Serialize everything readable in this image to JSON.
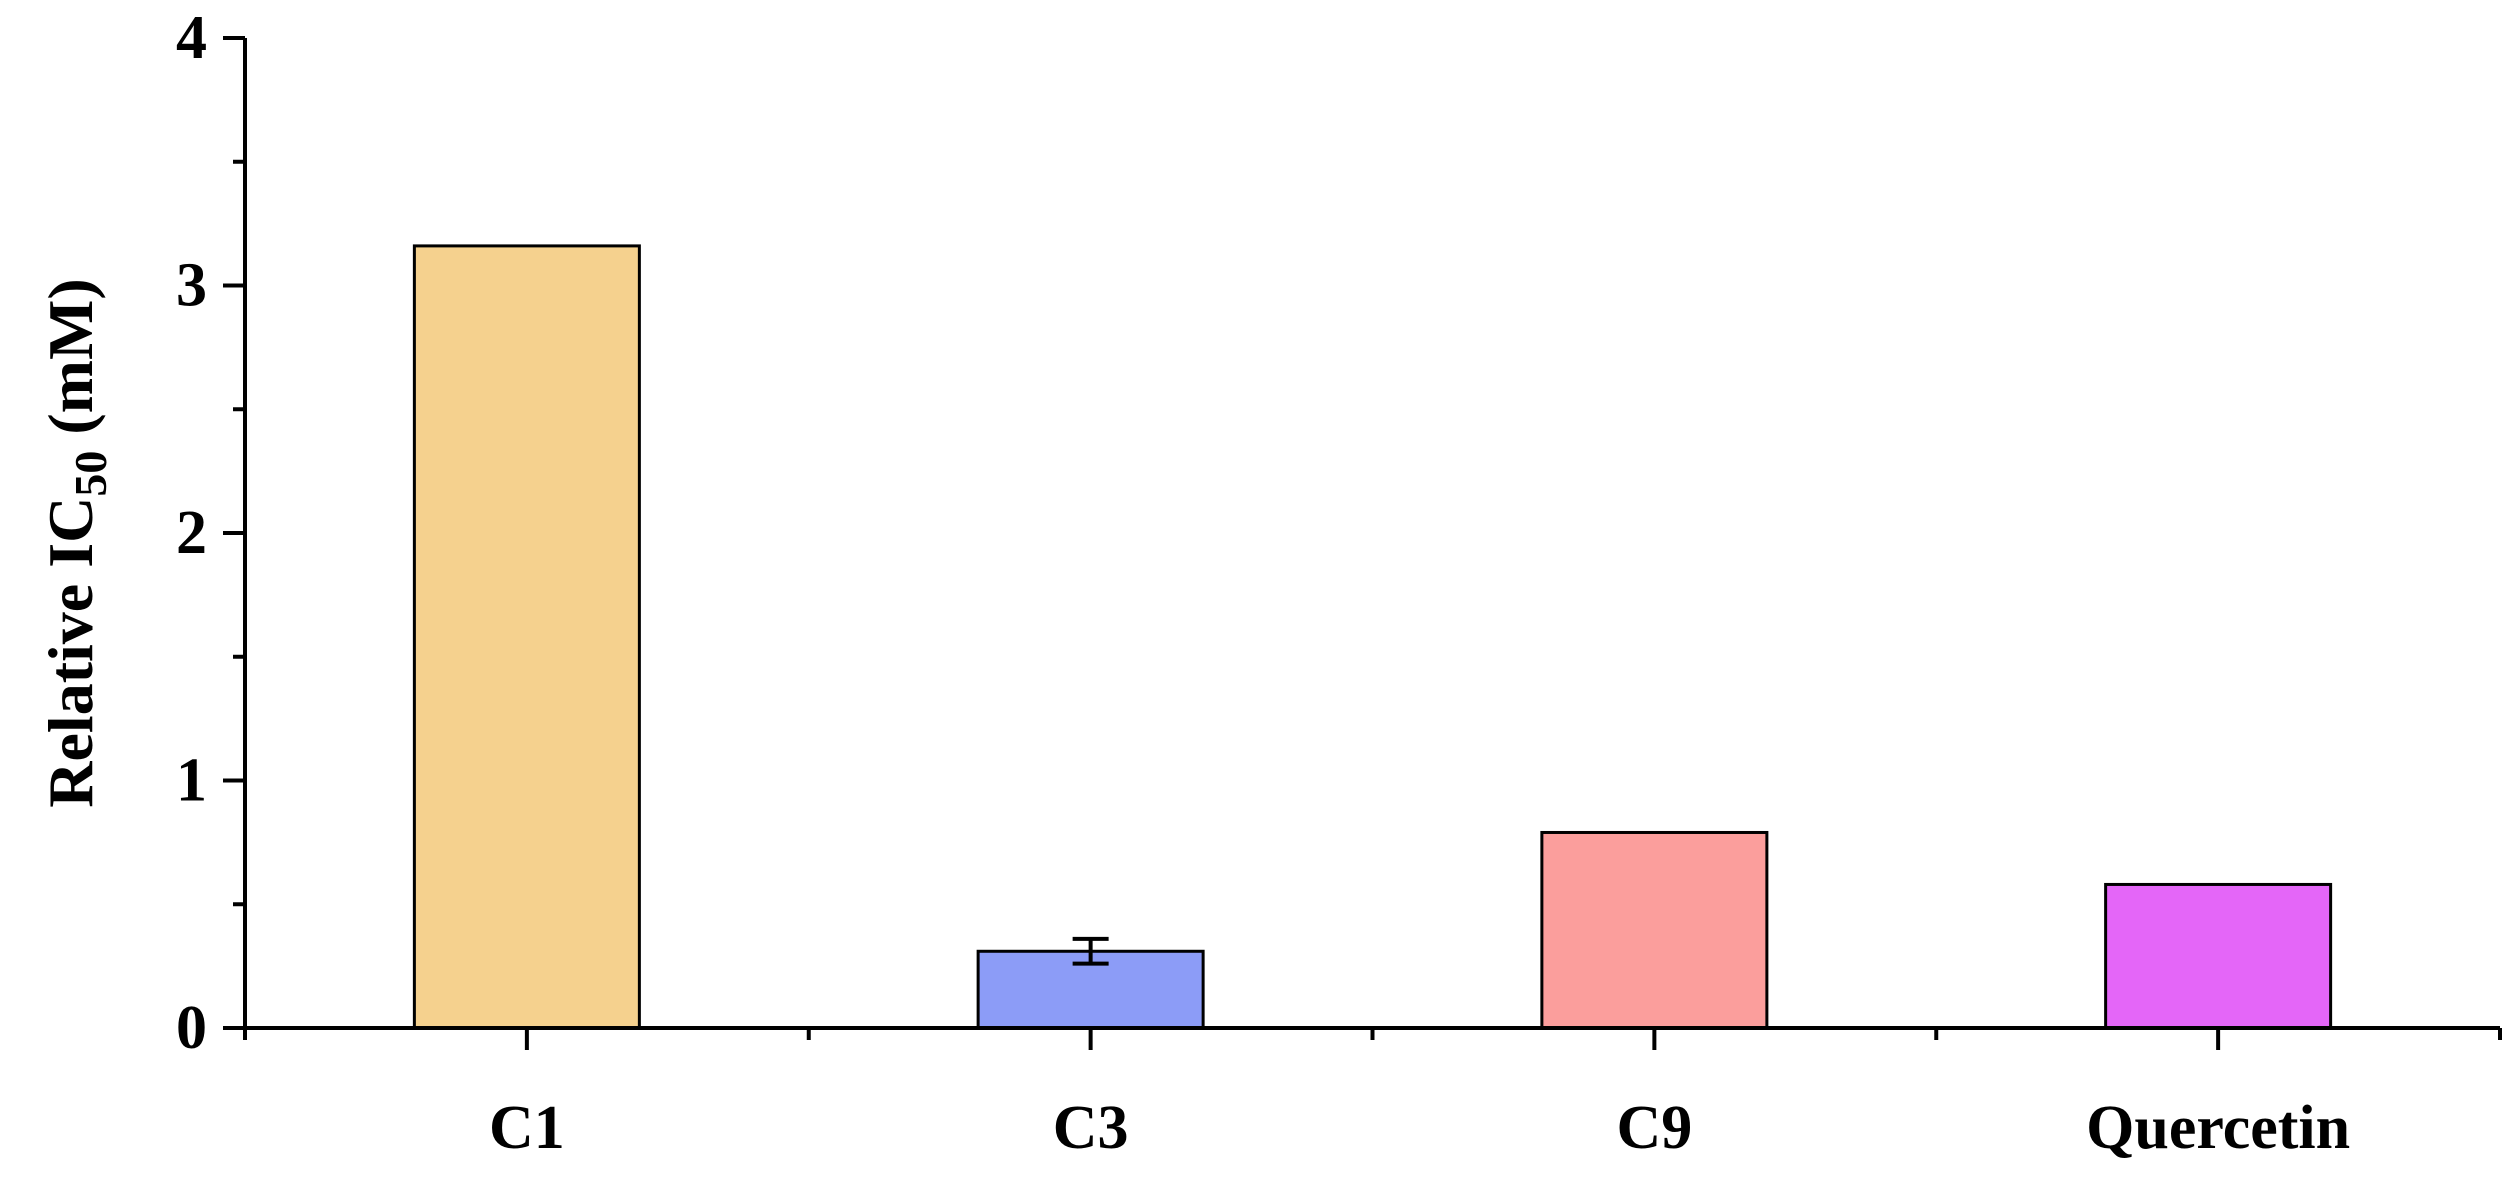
{
  "chart_data": {
    "type": "bar",
    "categories": [
      "C1",
      "C3",
      "C9",
      "Quercetin"
    ],
    "values": [
      3.16,
      0.31,
      0.79,
      0.58
    ],
    "errors": [
      0,
      0.05,
      0,
      0
    ],
    "colors": [
      "#F5D18E",
      "#8C9CF7",
      "#FB9E9C",
      "#E466F8"
    ],
    "title": "",
    "xlabel": "",
    "ylabel": {
      "main": "Relative IC",
      "subscript": "50",
      "suffix": " (mM)"
    },
    "ylim": [
      0,
      4
    ],
    "yticks": [
      "0",
      "1",
      "2",
      "3",
      "4"
    ],
    "grid": false
  }
}
